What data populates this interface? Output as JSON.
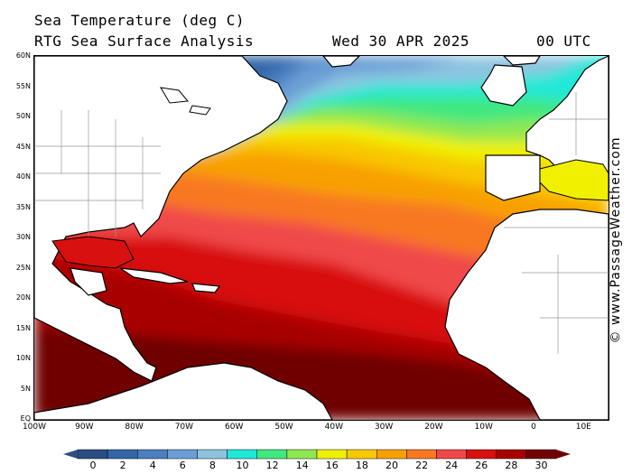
{
  "header": {
    "title": "Sea Temperature (deg C)",
    "subtitle": "RTG Sea Surface Analysis",
    "date": "Wed 30 APR 2025",
    "time": "00 UTC"
  },
  "credit": "© www.PassageWeather.com",
  "lat_labels": [
    "60N",
    "55N",
    "50N",
    "45N",
    "40N",
    "35N",
    "30N",
    "25N",
    "20N",
    "15N",
    "10N",
    "5N",
    "EQ"
  ],
  "lon_labels": [
    "100W",
    "90W",
    "80W",
    "70W",
    "60W",
    "50W",
    "40W",
    "30W",
    "20W",
    "10W",
    "0",
    "10E"
  ],
  "colorbar": {
    "ticks": [
      "0",
      "2",
      "4",
      "6",
      "8",
      "10",
      "12",
      "14",
      "16",
      "18",
      "20",
      "22",
      "24",
      "26",
      "28",
      "30"
    ],
    "colors": [
      "#2a4d82",
      "#3366a8",
      "#4a7fc0",
      "#6b9ed6",
      "#8cc4e0",
      "#20e8d8",
      "#40e880",
      "#90e850",
      "#f0f000",
      "#f8c800",
      "#f8a000",
      "#f87820",
      "#f04848",
      "#d81010",
      "#a80000",
      "#700000"
    ]
  },
  "map": {
    "region": "North Atlantic Ocean",
    "land_color": "#ffffff",
    "border_color": "#999999"
  }
}
